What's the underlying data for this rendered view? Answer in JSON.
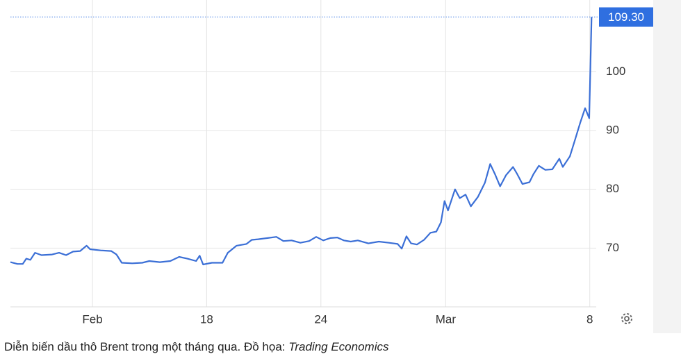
{
  "chart_data": {
    "type": "line",
    "x": [
      0,
      1.2,
      2.1,
      2.7,
      3.4,
      4.2,
      5.3,
      7.1,
      8.3,
      9.5,
      10.7,
      11.9,
      13.0,
      13.6,
      15.4,
      17.2,
      18.1,
      19.0,
      20.8,
      22.5,
      23.7,
      25.5,
      27.3,
      28.8,
      30.2,
      31.7,
      32.3,
      32.9,
      34.4,
      36.2,
      37.1,
      38.6,
      40.3,
      41.2,
      42.3,
      43.9,
      45.4,
      46.6,
      48.0,
      49.5,
      51.0,
      52.2,
      53.4,
      54.6,
      55.8,
      56.9,
      58.1,
      59.3,
      61.1,
      62.9,
      64.6,
      66.1,
      66.8,
      67.6,
      68.4,
      69.4,
      70.6,
      71.7,
      72.7,
      73.5,
      74.1,
      74.7,
      75.9,
      76.7,
      77.7,
      78.6,
      79.8,
      81.0,
      81.9,
      82.7,
      83.6,
      84.6,
      85.8,
      86.5,
      87.4,
      88.6,
      89.3,
      90.2,
      91.3,
      92.5,
      93.7,
      94.3,
      95.5,
      96.4,
      97.3,
      98.1,
      98.8,
      99.2
    ],
    "series": [
      {
        "color": "#3b6fd6",
        "values": [
          67.6,
          67.3,
          67.3,
          68.2,
          68.0,
          69.2,
          68.8,
          68.9,
          69.2,
          68.8,
          69.4,
          69.5,
          70.4,
          69.8,
          69.6,
          69.5,
          68.9,
          67.5,
          67.4,
          67.5,
          67.8,
          67.6,
          67.8,
          68.5,
          68.2,
          67.8,
          68.7,
          67.2,
          67.5,
          67.5,
          69.2,
          70.4,
          70.7,
          71.4,
          71.5,
          71.7,
          71.9,
          71.2,
          71.3,
          70.9,
          71.2,
          71.9,
          71.3,
          71.7,
          71.8,
          71.3,
          71.1,
          71.3,
          70.8,
          71.1,
          70.9,
          70.7,
          69.9,
          72.0,
          70.8,
          70.6,
          71.4,
          72.6,
          72.8,
          74.4,
          78.0,
          76.4,
          80.0,
          78.5,
          79.1,
          77.1,
          78.7,
          81.1,
          84.3,
          82.6,
          80.5,
          82.4,
          83.8,
          82.6,
          80.9,
          81.2,
          82.6,
          84.0,
          83.3,
          83.4,
          85.2,
          83.8,
          85.6,
          88.5,
          91.4,
          93.8,
          92.1,
          109.3
        ]
      }
    ],
    "last_price": {
      "value": 109.3,
      "label": "109.30",
      "color": "#2f6fe0"
    },
    "xlim": [
      0,
      100
    ],
    "xticks": [
      {
        "value": 14.0,
        "label": "Feb"
      },
      {
        "value": 33.5,
        "label": "18"
      },
      {
        "value": 53.0,
        "label": "24"
      },
      {
        "value": 74.3,
        "label": "Mar"
      },
      {
        "value": 98.9,
        "label": "8"
      }
    ],
    "ylim": [
      60,
      112.2
    ],
    "yticks": [
      70,
      80,
      90,
      100
    ],
    "grid": true
  },
  "caption": {
    "text": "Diễn biến dầu thô Brent trong một tháng qua. Đồ họa: ",
    "source": "Trading Economics"
  }
}
